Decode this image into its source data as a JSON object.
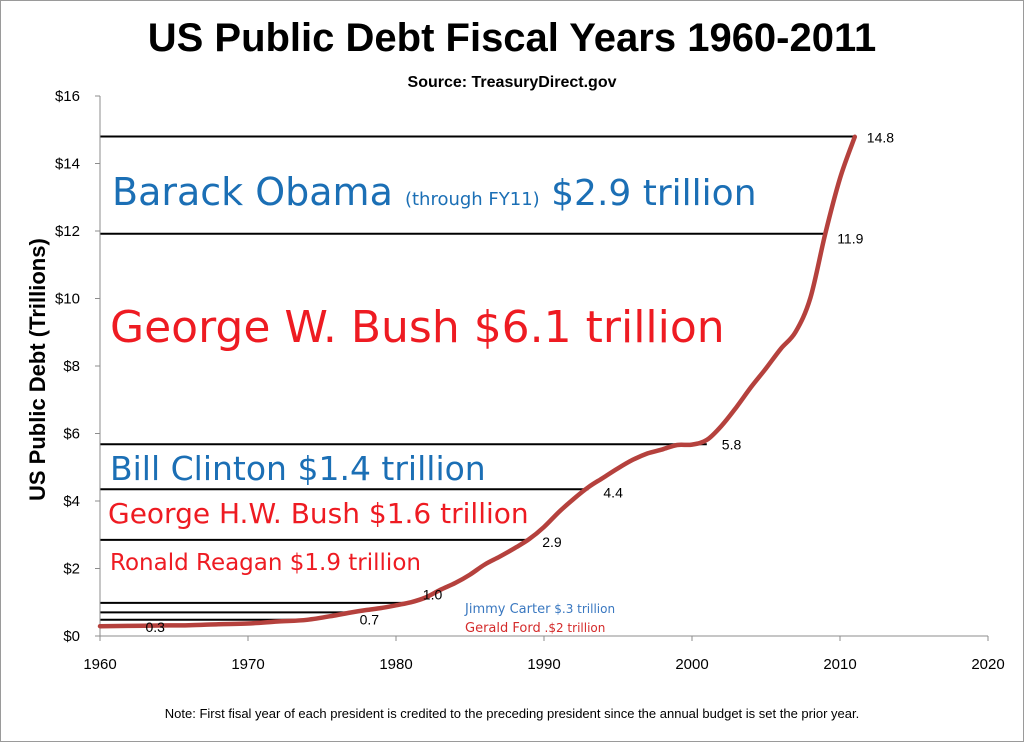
{
  "chart_data": {
    "type": "line",
    "title": "US Public Debt Fiscal Years 1960-2011",
    "subtitle": "Source:  TreasuryDirect.gov",
    "ylabel": "US Public Debt (Trillions)",
    "xlabel": "",
    "xlim": [
      1960,
      2020
    ],
    "ylim": [
      0,
      16
    ],
    "x_ticks": [
      1960,
      1970,
      1980,
      1990,
      2000,
      2010,
      2020
    ],
    "y_ticks": [
      0,
      2,
      4,
      6,
      8,
      10,
      12,
      14,
      16
    ],
    "y_tick_labels": [
      "$0",
      "$2",
      "$4",
      "$6",
      "$8",
      "$10",
      "$12",
      "$14",
      "$16"
    ],
    "grid": false,
    "legend": "none",
    "series": [
      {
        "color": "#b5413d",
        "x": [
          1960,
          1962,
          1964,
          1966,
          1968,
          1970,
          1972,
          1974,
          1976,
          1977,
          1978,
          1979,
          1980,
          1981,
          1982,
          1983,
          1984,
          1985,
          1986,
          1987,
          1988,
          1989,
          1990,
          1991,
          1992,
          1993,
          1994,
          1995,
          1996,
          1997,
          1998,
          1999,
          2000,
          2001,
          2002,
          2003,
          2004,
          2005,
          2006,
          2007,
          2008,
          2009,
          2010,
          2011
        ],
        "y": [
          0.29,
          0.3,
          0.31,
          0.32,
          0.35,
          0.37,
          0.43,
          0.48,
          0.62,
          0.7,
          0.77,
          0.83,
          0.91,
          1.0,
          1.14,
          1.37,
          1.57,
          1.82,
          2.12,
          2.35,
          2.6,
          2.87,
          3.23,
          3.67,
          4.06,
          4.41,
          4.69,
          4.97,
          5.22,
          5.41,
          5.53,
          5.66,
          5.67,
          5.81,
          6.23,
          6.78,
          7.38,
          7.93,
          8.51,
          9.01,
          10.02,
          11.91,
          13.56,
          14.79
        ]
      }
    ],
    "data_labels": [
      {
        "x": 1964,
        "y": 0.3,
        "text": "0.3"
      },
      {
        "x": 1977,
        "y": 0.7,
        "text": "0.7"
      },
      {
        "x": 1981,
        "y": 1.0,
        "text": "1.0"
      },
      {
        "x": 1989,
        "y": 2.9,
        "text": "2.9"
      },
      {
        "x": 1993,
        "y": 4.4,
        "text": "4.4"
      },
      {
        "x": 2001,
        "y": 5.8,
        "text": "5.8"
      },
      {
        "x": 2009,
        "y": 11.9,
        "text": "11.9"
      },
      {
        "x": 2011,
        "y": 14.8,
        "text": "14.8"
      }
    ],
    "reference_lines": [
      {
        "y": 0.48,
        "x_end": 1974
      },
      {
        "y": 0.7,
        "x_end": 1977
      },
      {
        "y": 0.98,
        "x_end": 1981
      },
      {
        "y": 2.85,
        "x_end": 1989
      },
      {
        "y": 4.35,
        "x_end": 1993
      },
      {
        "y": 5.68,
        "x_end": 2001
      },
      {
        "y": 11.92,
        "x_end": 2009
      },
      {
        "y": 14.8,
        "x_end": 2011
      }
    ],
    "annotations": [
      {
        "id": "obama",
        "color": "#1b6fb5",
        "parts": [
          {
            "text": "Barack Obama ",
            "size": 38
          },
          {
            "text": "(through FY11)",
            "size": 18
          },
          {
            "text": " $2.9 trillion",
            "size": 36
          }
        ]
      },
      {
        "id": "gwbush",
        "color": "#ee1b22",
        "parts": [
          {
            "text": "George W. Bush $6.1 trillion",
            "size": 44
          }
        ]
      },
      {
        "id": "clinton",
        "color": "#1b6fb5",
        "parts": [
          {
            "text": "Bill Clinton $1.4 trillion",
            "size": 33
          }
        ]
      },
      {
        "id": "ghwbush",
        "color": "#ee1b22",
        "parts": [
          {
            "text": "George H.W. Bush $1.6 trillion",
            "size": 28
          }
        ]
      },
      {
        "id": "reagan",
        "color": "#ee1b22",
        "parts": [
          {
            "text": "Ronald Reagan $1.9 trillion",
            "size": 23
          }
        ]
      },
      {
        "id": "carter",
        "color": "#3a78c0",
        "parts": [
          {
            "text": "Jimmy Carter",
            "size": 13
          },
          {
            "text": " $.3 trillion",
            "size": 12
          }
        ]
      },
      {
        "id": "ford",
        "color": "#d42b2b",
        "parts": [
          {
            "text": "Gerald Ford",
            "size": 13
          },
          {
            "text": " .$2 trillion",
            "size": 12
          }
        ]
      }
    ],
    "note": "Note: First fisal year of each president is credited to the preceding president since the annual budget is set the prior year."
  }
}
